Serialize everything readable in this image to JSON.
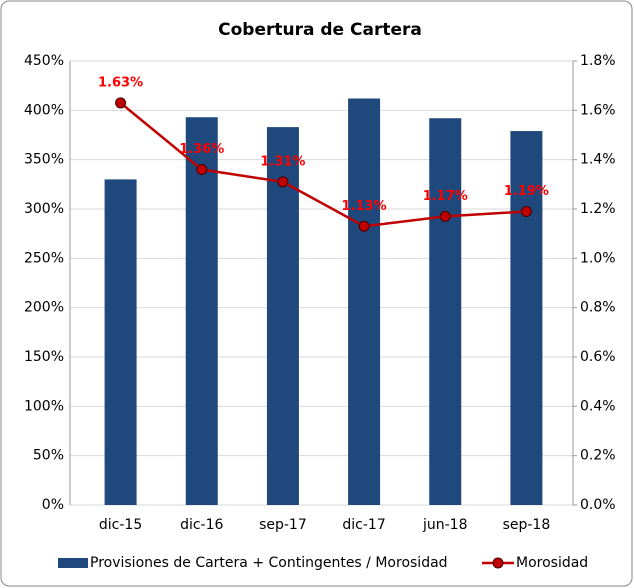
{
  "chart_data": {
    "type": "bar_line",
    "title": "Cobertura de Cartera",
    "categories": [
      "dic-15",
      "dic-16",
      "sep-17",
      "dic-17",
      "jun-18",
      "sep-18"
    ],
    "series": [
      {
        "name": "Provisiones de Cartera + Contingentes / Morosidad",
        "type": "bar",
        "color": "#1f497d",
        "values": [
          330,
          393,
          383,
          412,
          392,
          379
        ]
      },
      {
        "name": "Morosidad",
        "type": "line",
        "color": "#c00000",
        "axis": "y2",
        "values": [
          1.63,
          1.36,
          1.31,
          1.13,
          1.17,
          1.19
        ],
        "value_labels": [
          "1.63%",
          "1.36%",
          "1.31%",
          "1.13%",
          "1.17%",
          "1.19%"
        ]
      }
    ],
    "ylim": [
      0,
      450
    ],
    "yticks": [
      {
        "value": 0,
        "label": "0%"
      },
      {
        "value": 50,
        "label": "50%"
      },
      {
        "value": 100,
        "label": "100%"
      },
      {
        "value": 150,
        "label": "150%"
      },
      {
        "value": 200,
        "label": "200%"
      },
      {
        "value": 250,
        "label": "250%"
      },
      {
        "value": 300,
        "label": "300%"
      },
      {
        "value": 350,
        "label": "350%"
      },
      {
        "value": 400,
        "label": "400%"
      },
      {
        "value": 450,
        "label": "450%"
      }
    ],
    "y2lim": [
      0,
      1.8
    ],
    "y2ticks": [
      {
        "value": 0,
        "label": "0.0%"
      },
      {
        "value": 0.2,
        "label": "0.2%"
      },
      {
        "value": 0.4,
        "label": "0.4%"
      },
      {
        "value": 0.6,
        "label": "0.6%"
      },
      {
        "value": 0.8,
        "label": "0.8%"
      },
      {
        "value": 1.0,
        "label": "1.0%"
      },
      {
        "value": 1.2,
        "label": "1.2%"
      },
      {
        "value": 1.4,
        "label": "1.4%"
      },
      {
        "value": 1.6,
        "label": "1.6%"
      },
      {
        "value": 1.8,
        "label": "1.8%"
      }
    ],
    "grid": true,
    "legend": "bottom"
  }
}
